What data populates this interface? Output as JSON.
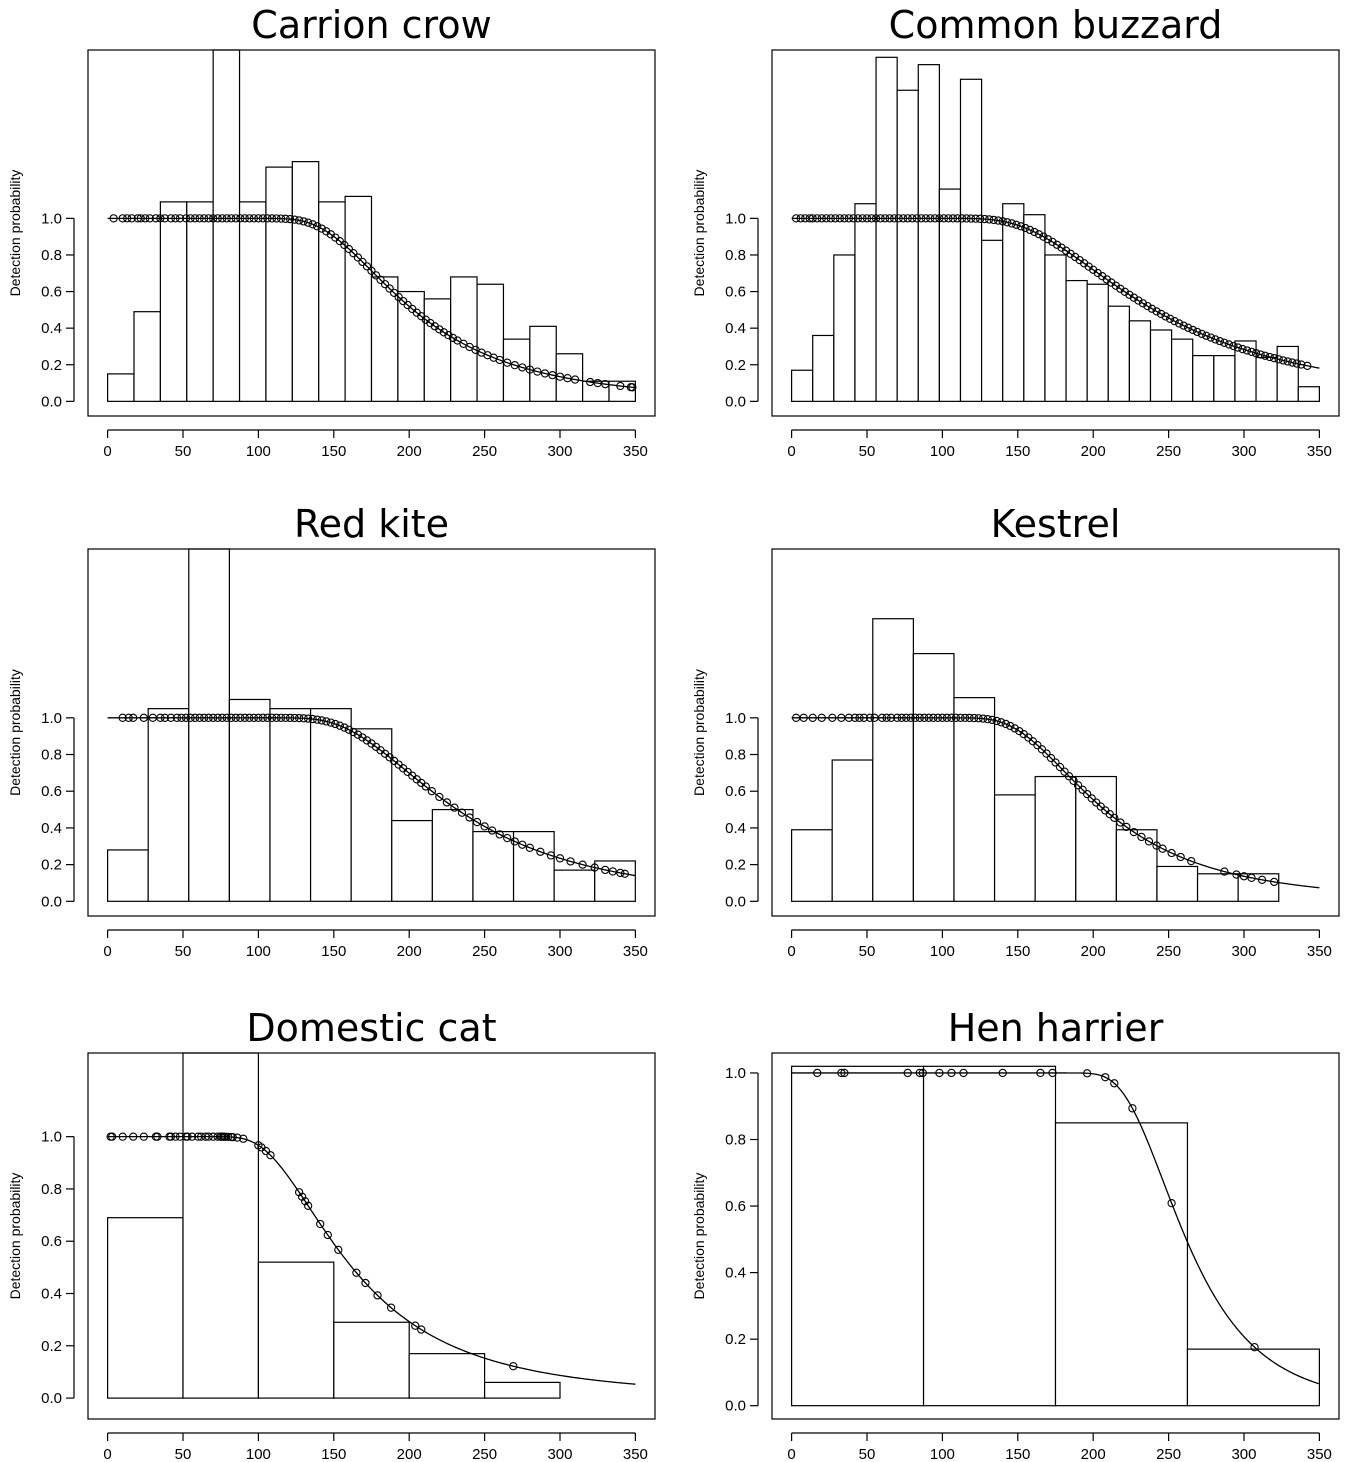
{
  "chart_data": [
    {
      "type": "bar",
      "title": "Carrion crow",
      "ylabel": "Detection probability",
      "xlabel": "",
      "xlim": [
        -13,
        363
      ],
      "ylim": [
        -0.08,
        1.92
      ],
      "x_ticks": [
        0,
        50,
        100,
        150,
        200,
        250,
        300,
        350
      ],
      "y_ticks": [
        0.0,
        0.2,
        0.4,
        0.6,
        0.8,
        1.0
      ],
      "bin_width": 17.5,
      "bin_start": 0,
      "hist_values": [
        0.15,
        0.49,
        1.09,
        1.09,
        1.92,
        1.09,
        1.28,
        1.31,
        1.09,
        1.12,
        0.68,
        0.6,
        0.56,
        0.68,
        0.64,
        0.34,
        0.41,
        0.26,
        0.11,
        0.11
      ],
      "curve": {
        "sigma": 185,
        "b": 4.0,
        "x_start": 0,
        "x_end": 350
      },
      "points": [
        4,
        10,
        13,
        16,
        20,
        22,
        25,
        28,
        32,
        35,
        38,
        42,
        45,
        48,
        52,
        55,
        58,
        61,
        64,
        67,
        70,
        73,
        76,
        79,
        82,
        85,
        88,
        91,
        94,
        97,
        100,
        103,
        106,
        109,
        112,
        115,
        118,
        121,
        124,
        127,
        130,
        133,
        136,
        139,
        142,
        145,
        148,
        151,
        154,
        157,
        160,
        163,
        166,
        169,
        172,
        175,
        178,
        181,
        184,
        187,
        190,
        193,
        196,
        199,
        202,
        205,
        208,
        211,
        214,
        217,
        220,
        223,
        226,
        229,
        232,
        236,
        240,
        244,
        248,
        252,
        256,
        260,
        265,
        270,
        275,
        280,
        285,
        290,
        295,
        300,
        305,
        310,
        320,
        325,
        330,
        340,
        347,
        348
      ]
    },
    {
      "type": "bar",
      "title": "Common buzzard",
      "ylabel": "Detection probability",
      "xlabel": "",
      "xlim": [
        -13,
        363
      ],
      "ylim": [
        -0.08,
        1.92
      ],
      "x_ticks": [
        0,
        50,
        100,
        150,
        200,
        250,
        300,
        350
      ],
      "y_ticks": [
        0.0,
        0.2,
        0.4,
        0.6,
        0.8,
        1.0
      ],
      "bin_width": 14,
      "bin_start": 0,
      "hist_values": [
        0.17,
        0.36,
        0.8,
        1.08,
        1.88,
        1.7,
        1.84,
        1.16,
        1.76,
        0.88,
        1.08,
        1.02,
        0.8,
        0.66,
        0.64,
        0.52,
        0.44,
        0.39,
        0.34,
        0.25,
        0.25,
        0.33,
        0.24,
        0.3,
        0.08
      ],
      "curve": {
        "sigma": 215,
        "b": 3.3,
        "x_start": 0,
        "x_end": 350
      },
      "points": [
        3,
        6,
        9,
        12,
        14,
        17,
        20,
        23,
        26,
        29,
        32,
        35,
        38,
        41,
        44,
        47,
        50,
        53,
        56,
        59,
        62,
        65,
        68,
        71,
        74,
        77,
        80,
        83,
        86,
        89,
        92,
        95,
        98,
        101,
        104,
        107,
        110,
        113,
        116,
        119,
        122,
        125,
        128,
        131,
        134,
        137,
        140,
        143,
        146,
        149,
        152,
        155,
        158,
        161,
        164,
        167,
        170,
        173,
        176,
        179,
        182,
        185,
        188,
        191,
        194,
        197,
        200,
        203,
        206,
        209,
        212,
        215,
        218,
        221,
        224,
        227,
        230,
        233,
        236,
        239,
        242,
        245,
        248,
        251,
        254,
        257,
        260,
        263,
        266,
        269,
        272,
        275,
        278,
        281,
        284,
        287,
        290,
        293,
        296,
        299,
        302,
        305,
        308,
        311,
        314,
        317,
        320,
        323,
        326,
        329,
        332,
        335,
        338,
        342
      ]
    },
    {
      "type": "bar",
      "title": "Red kite",
      "ylabel": "Detection probability",
      "xlabel": "",
      "xlim": [
        -13,
        363
      ],
      "ylim": [
        -0.08,
        1.92
      ],
      "x_ticks": [
        0,
        50,
        100,
        150,
        200,
        250,
        300,
        350
      ],
      "y_ticks": [
        0.0,
        0.2,
        0.4,
        0.6,
        0.8,
        1.0
      ],
      "bin_width": 26.92,
      "bin_start": 0,
      "hist_values": [
        0.28,
        1.05,
        1.92,
        1.1,
        1.05,
        1.05,
        0.94,
        0.44,
        0.5,
        0.38,
        0.38,
        0.17,
        0.22
      ],
      "curve": {
        "sigma": 210,
        "b": 3.7,
        "x_start": 0,
        "x_end": 350
      },
      "points": [
        10,
        14,
        17,
        24,
        30,
        35,
        38,
        42,
        46,
        49,
        52,
        55,
        58,
        61,
        64,
        67,
        70,
        73,
        76,
        79,
        82,
        85,
        88,
        91,
        94,
        97,
        100,
        103,
        106,
        109,
        112,
        115,
        118,
        121,
        124,
        127,
        130,
        133,
        136,
        139,
        142,
        145,
        148,
        151,
        154,
        157,
        160,
        163,
        166,
        169,
        172,
        175,
        178,
        181,
        184,
        187,
        190,
        193,
        196,
        199,
        202,
        205,
        208,
        211,
        215,
        220,
        225,
        230,
        235,
        240,
        245,
        250,
        255,
        260,
        265,
        270,
        275,
        280,
        287,
        294,
        300,
        307,
        315,
        323,
        330,
        335,
        340,
        343
      ]
    },
    {
      "type": "bar",
      "title": "Kestrel",
      "ylabel": "Detection probability",
      "xlabel": "",
      "xlim": [
        -13,
        363
      ],
      "ylim": [
        -0.08,
        1.92
      ],
      "x_ticks": [
        0,
        50,
        100,
        150,
        200,
        250,
        300,
        350
      ],
      "y_ticks": [
        0.0,
        0.2,
        0.4,
        0.6,
        0.8,
        1.0
      ],
      "bin_width": 26.92,
      "bin_start": 0,
      "hist_values": [
        0.39,
        0.77,
        1.54,
        1.35,
        1.11,
        0.58,
        0.68,
        0.68,
        0.39,
        0.19,
        0.15,
        0.15
      ],
      "curve": {
        "sigma": 190,
        "b": 4.2,
        "x_start": 0,
        "x_end": 350
      },
      "points": [
        3,
        8,
        14,
        20,
        27,
        33,
        38,
        42,
        45,
        48,
        52,
        55,
        60,
        63,
        66,
        70,
        73,
        76,
        79,
        82,
        85,
        88,
        91,
        94,
        97,
        100,
        103,
        106,
        109,
        112,
        115,
        118,
        121,
        124,
        127,
        130,
        133,
        136,
        139,
        142,
        145,
        148,
        151,
        154,
        157,
        160,
        163,
        166,
        169,
        172,
        175,
        178,
        181,
        184,
        187,
        190,
        193,
        196,
        199,
        202,
        205,
        208,
        211,
        214,
        218,
        222,
        227,
        232,
        237,
        242,
        246,
        252,
        258,
        265,
        287,
        295,
        300,
        305,
        312,
        320
      ]
    },
    {
      "type": "bar",
      "title": "Domestic cat",
      "ylabel": "Detection probability",
      "xlabel": "",
      "xlim": [
        -13,
        363
      ],
      "ylim": [
        -0.08,
        1.32
      ],
      "x_ticks": [
        0,
        50,
        100,
        150,
        200,
        250,
        300,
        350
      ],
      "y_ticks": [
        0.0,
        0.2,
        0.4,
        0.6,
        0.8,
        1.0
      ],
      "bin_width": 50,
      "bin_start": 0,
      "hist_values": [
        0.69,
        1.32,
        0.52,
        0.29,
        0.17,
        0.06,
        0.0
      ],
      "curve": {
        "sigma": 145,
        "b": 3.3,
        "x_start": 0,
        "x_end": 350
      },
      "points": [
        2,
        3,
        10,
        17,
        24,
        32,
        33,
        41,
        42,
        45,
        48,
        52,
        53,
        56,
        60,
        62,
        65,
        67,
        70,
        73,
        75,
        76,
        77,
        78,
        80,
        82,
        83,
        86,
        90,
        100,
        102,
        105,
        108,
        127,
        129,
        131,
        133,
        141,
        146,
        153,
        165,
        171,
        179,
        188,
        204,
        208,
        269
      ]
    },
    {
      "type": "bar",
      "title": "Hen harrier",
      "ylabel": "Detection probability",
      "xlabel": "",
      "xlim": [
        -13,
        363
      ],
      "ylim": [
        -0.04,
        1.06
      ],
      "x_ticks": [
        0,
        50,
        100,
        150,
        200,
        250,
        300,
        350
      ],
      "y_ticks": [
        0.0,
        0.2,
        0.4,
        0.6,
        0.8,
        1.0
      ],
      "bin_width": 87.5,
      "bin_start": 0,
      "hist_values": [
        1.02,
        1.02,
        0.85,
        0.17
      ],
      "curve": {
        "sigma": 250,
        "b": 8.0,
        "x_start": 0,
        "x_end": 350
      },
      "points": [
        17,
        33,
        35,
        77,
        85,
        87,
        98,
        106,
        114,
        140,
        165,
        173,
        196,
        208,
        214,
        226,
        252,
        307
      ]
    }
  ]
}
